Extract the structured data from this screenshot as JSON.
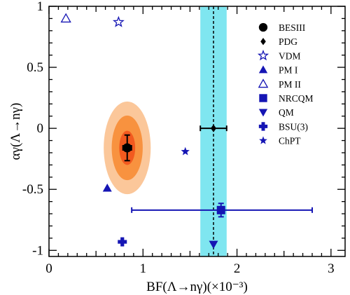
{
  "chart_data": {
    "type": "scatter",
    "xlabel": "BF(Λ→nγ)(×10⁻³)",
    "ylabel": "αγ(Λ→nγ)",
    "xlim": [
      0,
      3.15
    ],
    "ylim": [
      -1.05,
      1
    ],
    "x_ticks": [
      "0",
      "1",
      "2",
      "3"
    ],
    "y_ticks": [
      "-1",
      "-0.5",
      "0",
      "0.5",
      "1"
    ],
    "grid": false,
    "legend_position": "top-right",
    "pdg_band": {
      "center": 1.75,
      "low": 1.61,
      "high": 1.89,
      "color": "#7fe6f0"
    },
    "besiii_contours": [
      {
        "level": "3σ",
        "rx": 0.25,
        "ry": 0.38,
        "color": "#fbc79a"
      },
      {
        "level": "2σ",
        "rx": 0.165,
        "ry": 0.265,
        "color": "#f8923f"
      },
      {
        "level": "1σ",
        "rx": 0.085,
        "ry": 0.14,
        "color": "#f25a1f"
      }
    ],
    "series": [
      {
        "name": "BESIII",
        "marker": "circle-filled",
        "color": "#000000",
        "x": 0.832,
        "y": -0.16,
        "xerr": [
          0.045,
          0.045
        ],
        "yerr": [
          0.105,
          0.105
        ]
      },
      {
        "name": "PDG",
        "marker": "diamond-filled",
        "color": "#000000",
        "x": 1.75,
        "y": 0.0,
        "xerr": [
          0.14,
          0.14
        ],
        "yerr": [
          0,
          0
        ]
      },
      {
        "name": "VDM",
        "marker": "star-open",
        "color": "#1515b4",
        "x": 0.74,
        "y": 0.87
      },
      {
        "name": "PM I",
        "marker": "triangle-up-filled",
        "color": "#1515b4",
        "x": 0.62,
        "y": -0.49
      },
      {
        "name": "PM II",
        "marker": "triangle-up-open",
        "color": "#1515b4",
        "x": 0.18,
        "y": 0.9
      },
      {
        "name": "NRCQM",
        "marker": "square-filled",
        "color": "#1515b4",
        "x": 1.83,
        "y": -0.67,
        "xerr": [
          0.95,
          0.97
        ],
        "yerr": [
          0.055,
          0.055
        ]
      },
      {
        "name": "QM",
        "marker": "triangle-down-filled",
        "color": "#1515b4",
        "x": 1.75,
        "y": -0.95
      },
      {
        "name": "BSU(3)",
        "marker": "cross-filled",
        "color": "#1515b4",
        "x": 0.78,
        "y": -0.93
      },
      {
        "name": "ChPT",
        "marker": "star-filled",
        "color": "#1515b4",
        "x": 1.45,
        "y": -0.19
      }
    ]
  }
}
